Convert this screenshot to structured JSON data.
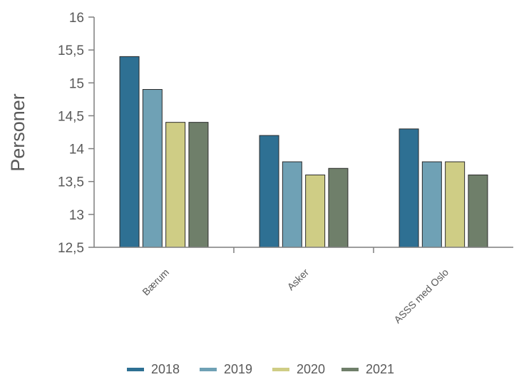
{
  "chart_data": {
    "type": "bar",
    "title": "",
    "xlabel": "",
    "ylabel": "Personer",
    "ylim": [
      12.5,
      16
    ],
    "yticks": [
      12.5,
      13,
      13.5,
      14,
      14.5,
      15,
      15.5,
      16
    ],
    "ytick_labels": [
      "12,5",
      "13",
      "13,5",
      "14",
      "14,5",
      "15",
      "15,5",
      "16"
    ],
    "categories": [
      "Bærum",
      "Asker",
      "ASSS med Oslo"
    ],
    "series": [
      {
        "name": "2018",
        "color": "#2e7093",
        "values": [
          15.4,
          14.2,
          14.3
        ]
      },
      {
        "name": "2019",
        "color": "#6fa1b5",
        "values": [
          14.9,
          13.8,
          13.8
        ]
      },
      {
        "name": "2020",
        "color": "#cfcd85",
        "values": [
          14.4,
          13.6,
          13.8
        ]
      },
      {
        "name": "2021",
        "color": "#6f7f6a",
        "values": [
          14.4,
          13.7,
          13.6
        ]
      }
    ],
    "grid": false,
    "legend_position": "bottom"
  }
}
